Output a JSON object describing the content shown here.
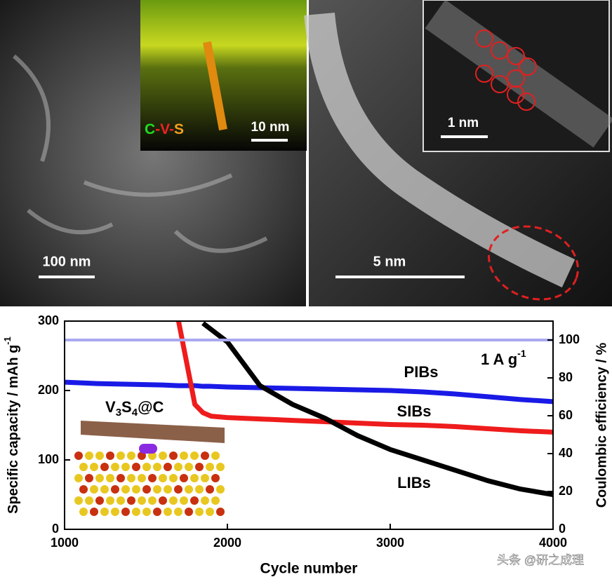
{
  "panels": {
    "a_scale": "100 nm",
    "a_inset_scale": "10 nm",
    "a_inset_map": [
      "C",
      "-",
      "V",
      "-",
      "S"
    ],
    "b_scale": "5 nm",
    "b_inset_scale": "1 nm"
  },
  "chart_data": {
    "type": "line",
    "xlabel": "Cycle number",
    "ylabel": "Specific capacity / mAh g",
    "ylabel_sup": "-1",
    "y2label": "Coulombic efficiency / %",
    "x": [
      1000,
      1200,
      1400,
      1600,
      1700,
      1750,
      1800,
      1850,
      1900,
      2000,
      2200,
      2400,
      2600,
      2800,
      3000,
      3200,
      3400,
      3600,
      3800,
      4000
    ],
    "series": [
      {
        "name": "PIBs",
        "color": "#1a1ae6",
        "values": [
          212,
          210,
          209,
          208,
          207,
          207,
          207,
          206,
          206,
          205,
          204,
          203,
          202,
          201,
          200,
          198,
          195,
          191,
          187,
          184
        ]
      },
      {
        "name": "SIBs",
        "color": "#ee1c1c",
        "values": [
          null,
          null,
          null,
          null,
          300,
          240,
          180,
          168,
          163,
          161,
          159,
          157,
          155,
          153,
          151,
          150,
          148,
          145,
          142,
          140
        ]
      },
      {
        "name": "LIBs",
        "color": "#000000",
        "values": [
          null,
          null,
          null,
          null,
          null,
          null,
          null,
          297,
          288,
          270,
          207,
          180,
          160,
          135,
          115,
          100,
          85,
          70,
          58,
          50
        ]
      },
      {
        "color": "#a8a8f0",
        "axis": "y2",
        "values": [
          100,
          100,
          100,
          100,
          100,
          100,
          100,
          100,
          100,
          100,
          100,
          100,
          100,
          100,
          100,
          100,
          100,
          100,
          100,
          100
        ]
      }
    ],
    "xlim": [
      1000,
      4000
    ],
    "xticks": [
      1000,
      2000,
      3000,
      4000
    ],
    "ylim": [
      0,
      300
    ],
    "yticks": [
      0,
      100,
      200,
      300
    ],
    "y2lim": [
      0,
      110
    ],
    "y2ticks": [
      0,
      20,
      40,
      60,
      80,
      100
    ],
    "annotations": {
      "current": "1 A g",
      "current_sup": "-1",
      "material": [
        "V",
        "3",
        "S",
        "4",
        "@C"
      ]
    }
  },
  "watermark": "头条 @研之成理"
}
